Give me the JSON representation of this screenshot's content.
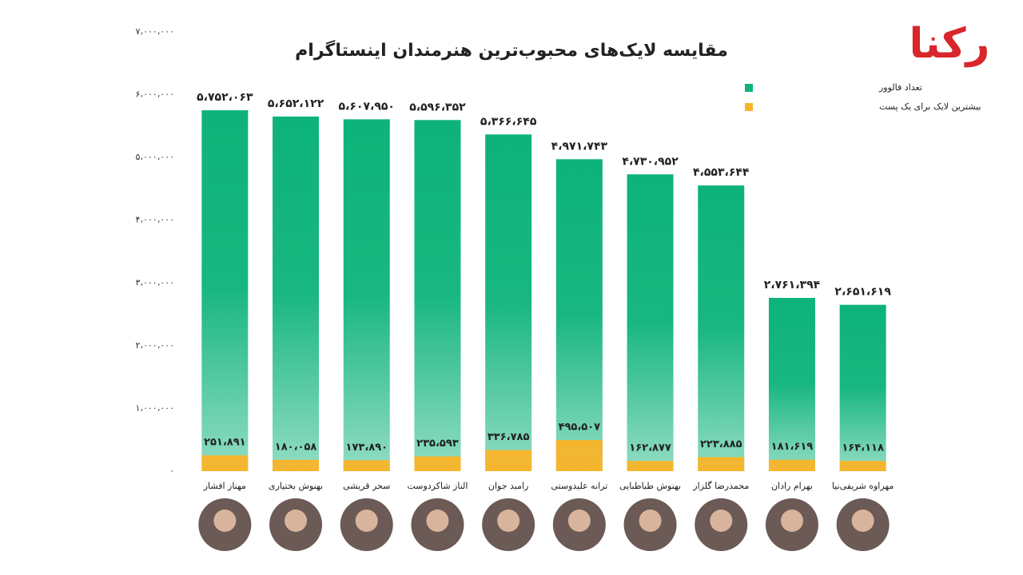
{
  "chart_data": {
    "type": "bar",
    "title": "مقایسه لایک‌های محبوب‌ترین هنرمندان اینستاگرام",
    "logo": "رکنا",
    "categories": [
      "مهناز افشار",
      "بهنوش بختیاری",
      "سحر قریشی",
      "الناز شاکردوست",
      "رامبد جوان",
      "ترانه علیدوستی",
      "بهنوش طباطبایی",
      "محمدرضا گلزار",
      "بهرام رادان",
      "مهراوه شریفی‌نیا"
    ],
    "series": [
      {
        "name": "تعداد فالوور",
        "color": "#0db37a",
        "values": [
          5752063,
          5652122,
          5607950,
          5596352,
          5366645,
          4971743,
          4730952,
          4553644,
          2761394,
          2651619
        ],
        "value_labels": [
          "۵،۷۵۲،۰۶۳",
          "۵،۶۵۲،۱۲۲",
          "۵،۶۰۷،۹۵۰",
          "۵،۵۹۶،۳۵۲",
          "۵،۳۶۶،۶۴۵",
          "۴،۹۷۱،۷۴۳",
          "۴،۷۳۰،۹۵۲",
          "۴،۵۵۳،۶۴۴",
          "۲،۷۶۱،۳۹۴",
          "۲،۶۵۱،۶۱۹"
        ]
      },
      {
        "name": "بیشترین لایک برای یک پست",
        "color": "#f7b52c",
        "values": [
          251891,
          180058,
          173890,
          235593,
          336785,
          495507,
          162877,
          223885,
          181619,
          164118
        ],
        "value_labels": [
          "۲۵۱،۸۹۱",
          "۱۸۰،۰۵۸",
          "۱۷۳،۸۹۰",
          "۲۳۵،۵۹۳",
          "۳۳۶،۷۸۵",
          "۴۹۵،۵۰۷",
          "۱۶۲،۸۷۷",
          "۲۲۳،۸۸۵",
          "۱۸۱،۶۱۹",
          "۱۶۴،۱۱۸"
        ]
      }
    ],
    "ylim": [
      0,
      7000000
    ],
    "yticks": [
      {
        "value": 0,
        "label": "۰"
      },
      {
        "value": 1000000,
        "label": "۱،۰۰۰،۰۰۰"
      },
      {
        "value": 2000000,
        "label": "۲،۰۰۰،۰۰۰"
      },
      {
        "value": 3000000,
        "label": "۳،۰۰۰،۰۰۰"
      },
      {
        "value": 4000000,
        "label": "۴،۰۰۰،۰۰۰"
      },
      {
        "value": 5000000,
        "label": "۵،۰۰۰،۰۰۰"
      },
      {
        "value": 6000000,
        "label": "۶،۰۰۰،۰۰۰"
      },
      {
        "value": 7000000,
        "label": "۷،۰۰۰،۰۰۰"
      }
    ],
    "legend": "top-right"
  }
}
